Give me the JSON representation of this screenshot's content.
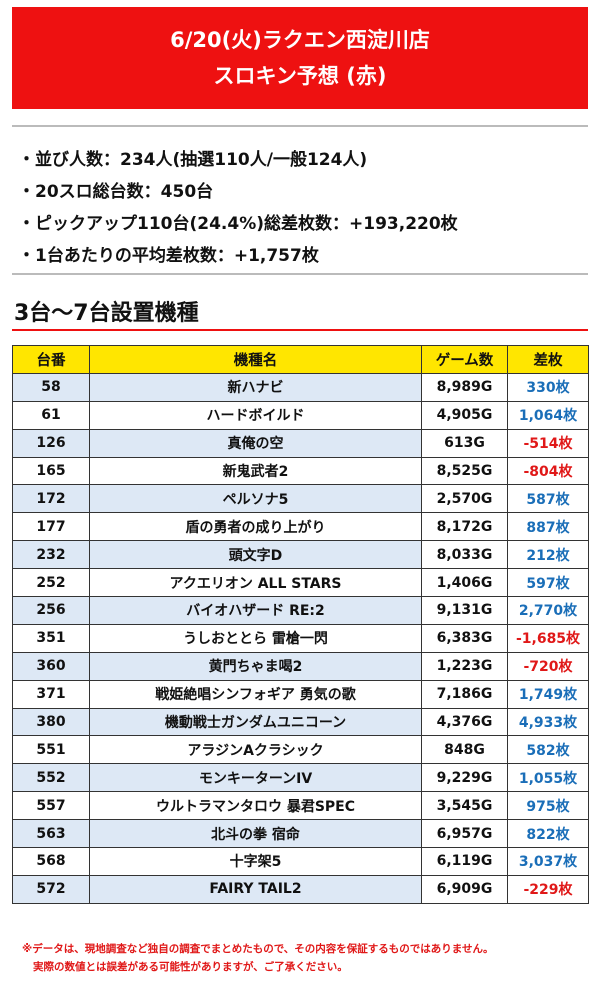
{
  "header": {
    "title_line1": "6/20(火)ラクエン西淀川店",
    "title_line2": "スロキン予想 (赤)",
    "bg_color": "#ee1111"
  },
  "stats": [
    "・並び人数：234人(抽選110人/一般124人)",
    "・20スロ総台数：450台",
    "・ピックアップ110台(24.4%)総差枚数：+193,220枚",
    "・1台あたりの平均差枚数：+1,757枚"
  ],
  "section": {
    "title": "3台～7台設置機種",
    "rule_color": "#ee1111"
  },
  "table": {
    "headers": [
      "台番",
      "機種名",
      "ゲーム数",
      "差枚"
    ],
    "header_color": "#ffe600",
    "positive_color": "#1a6eb8",
    "negative_color": "#e01818",
    "rows": [
      {
        "no": "58",
        "name": "新ハナビ",
        "games": "8,989G",
        "diff": "330枚"
      },
      {
        "no": "61",
        "name": "ハードボイルド",
        "games": "4,905G",
        "diff": "1,064枚"
      },
      {
        "no": "126",
        "name": "真俺の空",
        "games": "613G",
        "diff": "-514枚"
      },
      {
        "no": "165",
        "name": "新鬼武者2",
        "games": "8,525G",
        "diff": "-804枚"
      },
      {
        "no": "172",
        "name": "ペルソナ5",
        "games": "2,570G",
        "diff": "587枚"
      },
      {
        "no": "177",
        "name": "盾の勇者の成り上がり",
        "games": "8,172G",
        "diff": "887枚"
      },
      {
        "no": "232",
        "name": "頭文字D",
        "games": "8,033G",
        "diff": "212枚"
      },
      {
        "no": "252",
        "name": "アクエリオン ALL STARS",
        "games": "1,406G",
        "diff": "597枚"
      },
      {
        "no": "256",
        "name": "バイオハザード RE:2",
        "games": "9,131G",
        "diff": "2,770枚"
      },
      {
        "no": "351",
        "name": "うしおととら 雷槍一閃",
        "games": "6,383G",
        "diff": "-1,685枚"
      },
      {
        "no": "360",
        "name": "黄門ちゃま喝2",
        "games": "1,223G",
        "diff": "-720枚"
      },
      {
        "no": "371",
        "name": "戦姫絶唱シンフォギア 勇気の歌",
        "games": "7,186G",
        "diff": "1,749枚"
      },
      {
        "no": "380",
        "name": "機動戦士ガンダムユニコーン",
        "games": "4,376G",
        "diff": "4,933枚"
      },
      {
        "no": "551",
        "name": "アラジンAクラシック",
        "games": "848G",
        "diff": "582枚"
      },
      {
        "no": "552",
        "name": "モンキーターンIV",
        "games": "9,229G",
        "diff": "1,055枚"
      },
      {
        "no": "557",
        "name": "ウルトラマンタロウ 暴君SPEC",
        "games": "3,545G",
        "diff": "975枚"
      },
      {
        "no": "563",
        "name": "北斗の拳 宿命",
        "games": "6,957G",
        "diff": "822枚"
      },
      {
        "no": "568",
        "name": "十字架5",
        "games": "6,119G",
        "diff": "3,037枚"
      },
      {
        "no": "572",
        "name": "FAIRY TAIL2",
        "games": "6,909G",
        "diff": "-229枚"
      }
    ]
  },
  "note": {
    "line1": "※データは、現地調査など独自の調査でまとめたもので、その内容を保証するものではありません。",
    "line2": "実際の数値とは誤差がある可能性がありますが、ご了承ください。"
  }
}
